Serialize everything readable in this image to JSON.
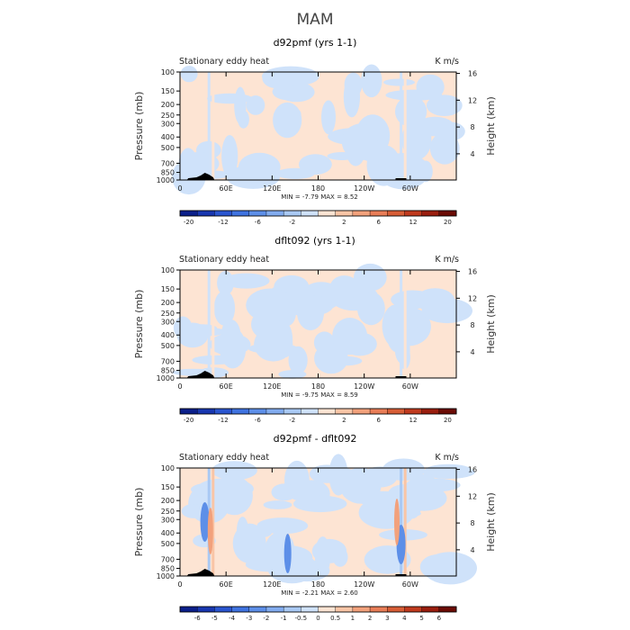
{
  "figure": {
    "title": "MAM"
  },
  "chart_data": [
    {
      "type": "heatmap",
      "title": "d92pmf (yrs 1-1)",
      "left_label": "Stationary eddy heat",
      "units": "K m/s",
      "xlabel": "",
      "ylabel": "Pressure (mb)",
      "ylabel_right": "Height (km)",
      "x_ticks": [
        "0",
        "60E",
        "120E",
        "180",
        "120W",
        "60W"
      ],
      "y_ticks": [
        "100",
        "150",
        "200",
        "250",
        "300",
        "400",
        "500",
        "700",
        "850",
        "1000"
      ],
      "y_right_ticks": [
        "16",
        "12",
        "8",
        "4"
      ],
      "min_max": "MIN =   -7.79   MAX =    8.52",
      "colorbar": {
        "levels": [
          -20,
          -16,
          -12,
          -8,
          -6,
          -4,
          -2,
          -1,
          1,
          2,
          4,
          6,
          8,
          12,
          16,
          20
        ],
        "labels": [
          "-20",
          "-12",
          "-6",
          "-2",
          "2",
          "6",
          "12",
          "20"
        ],
        "colors": [
          "#0b1f8a",
          "#1837b0",
          "#2a55cf",
          "#3f73e0",
          "#5d8fe8",
          "#82acef",
          "#a9c9f4",
          "#cfe2fa",
          "#fde4d3",
          "#f9c5a6",
          "#f2a17c",
          "#e87d57",
          "#d75d36",
          "#c03a1e",
          "#9a1e0f",
          "#6b0c05"
        ]
      }
    },
    {
      "type": "heatmap",
      "title": "dflt092 (yrs 1-1)",
      "left_label": "Stationary eddy heat",
      "units": "K m/s",
      "xlabel": "",
      "ylabel": "Pressure (mb)",
      "ylabel_right": "Height (km)",
      "x_ticks": [
        "0",
        "60E",
        "120E",
        "180",
        "120W",
        "60W"
      ],
      "y_ticks": [
        "100",
        "150",
        "200",
        "250",
        "300",
        "400",
        "500",
        "700",
        "850",
        "1000"
      ],
      "y_right_ticks": [
        "16",
        "12",
        "8",
        "4"
      ],
      "min_max": "MIN =   -9.75   MAX =    8.59",
      "colorbar": {
        "levels": [
          -20,
          -16,
          -12,
          -8,
          -6,
          -4,
          -2,
          -1,
          1,
          2,
          4,
          6,
          8,
          12,
          16,
          20
        ],
        "labels": [
          "-20",
          "-12",
          "-6",
          "-2",
          "2",
          "6",
          "12",
          "20"
        ],
        "colors": [
          "#0b1f8a",
          "#1837b0",
          "#2a55cf",
          "#3f73e0",
          "#5d8fe8",
          "#82acef",
          "#a9c9f4",
          "#cfe2fa",
          "#fde4d3",
          "#f9c5a6",
          "#f2a17c",
          "#e87d57",
          "#d75d36",
          "#c03a1e",
          "#9a1e0f",
          "#6b0c05"
        ]
      }
    },
    {
      "type": "heatmap",
      "title": "d92pmf - dflt092",
      "left_label": "Stationary eddy heat",
      "units": "K m/s",
      "xlabel": "",
      "ylabel": "Pressure (mb)",
      "ylabel_right": "Height (km)",
      "x_ticks": [
        "0",
        "60E",
        "120E",
        "180",
        "120W",
        "60W"
      ],
      "y_ticks": [
        "100",
        "150",
        "200",
        "250",
        "300",
        "400",
        "500",
        "700",
        "850",
        "1000"
      ],
      "y_right_ticks": [
        "16",
        "12",
        "8",
        "4"
      ],
      "min_max": "MIN =   -2.21   MAX =    2.60",
      "colorbar": {
        "levels": [
          -6,
          -5,
          -4,
          -3,
          -2,
          -1,
          -0.5,
          0,
          0.5,
          1,
          2,
          3,
          4,
          5,
          6
        ],
        "labels": [
          "-6",
          "-5",
          "-4",
          "-3",
          "-2",
          "-1",
          "-0.5",
          "0",
          "0.5",
          "1",
          "2",
          "3",
          "4",
          "5",
          "6"
        ],
        "colors": [
          "#0b1f8a",
          "#1837b0",
          "#2a55cf",
          "#3f73e0",
          "#5d8fe8",
          "#82acef",
          "#a9c9f4",
          "#cfe2fa",
          "#fde4d3",
          "#f9c5a6",
          "#f2a17c",
          "#e87d57",
          "#d75d36",
          "#c03a1e",
          "#9a1e0f",
          "#6b0c05"
        ]
      }
    }
  ]
}
